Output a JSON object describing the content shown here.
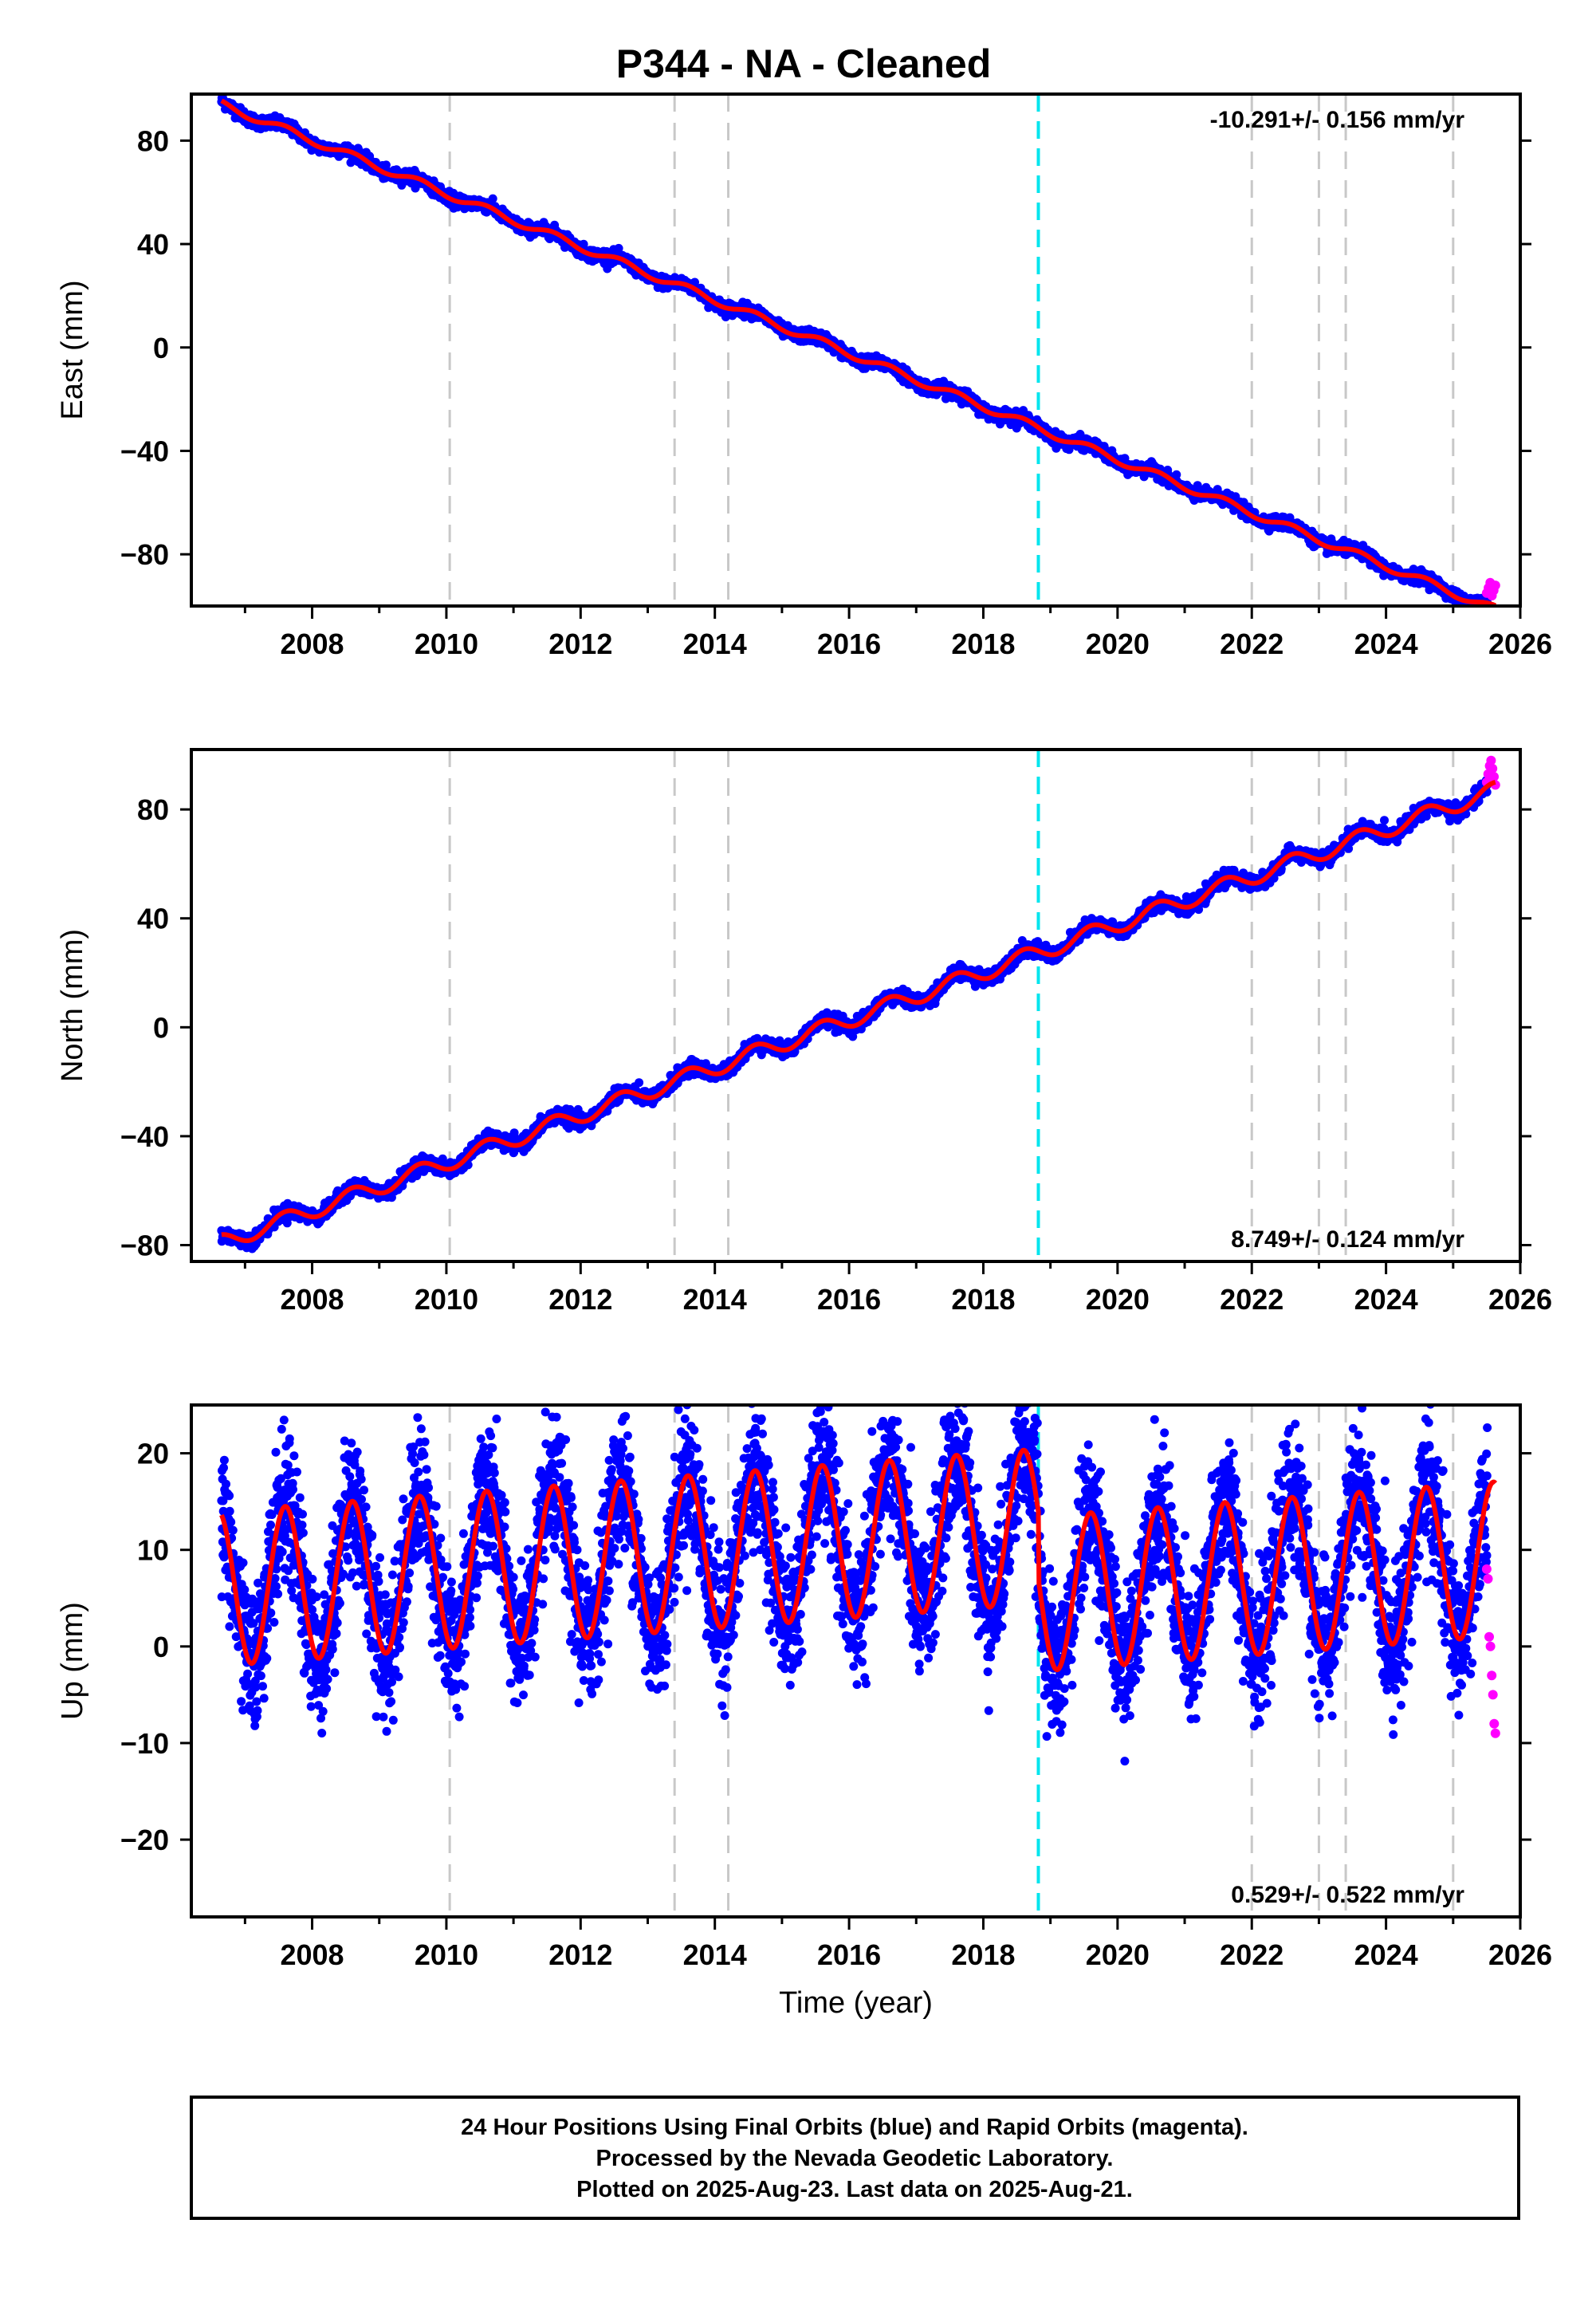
{
  "title": "P344  - NA - Cleaned",
  "chart_data": [
    {
      "type": "scatter",
      "component": "east",
      "ylabel": "East (mm)",
      "xlabel": "",
      "xlim": [
        2006.2,
        2026.0
      ],
      "ylim": [
        -100,
        98
      ],
      "x_ticks": [
        2008,
        2010,
        2012,
        2014,
        2016,
        2018,
        2020,
        2022,
        2024,
        2026
      ],
      "y_ticks": [
        80,
        40,
        0,
        -40,
        -80
      ],
      "rate_text": "-10.291+/- 0.156 mm/yr",
      "rate_position": "top-right",
      "start": 2006.65,
      "end": 2025.63,
      "trend": {
        "value_at_start": 94,
        "rate_mm_per_yr": -10.291,
        "seasonal_amplitude": 1.5,
        "noise": 1.2
      },
      "rapid_orbit_points": {
        "x_start": 2025.5,
        "x_end": 2025.63,
        "values": [
          -95,
          -93,
          -91,
          -96,
          -94,
          -92
        ]
      },
      "grid": false
    },
    {
      "type": "scatter",
      "component": "north",
      "ylabel": "North (mm)",
      "xlabel": "",
      "xlim": [
        2006.2,
        2026.0
      ],
      "ylim": [
        -86,
        102
      ],
      "x_ticks": [
        2008,
        2010,
        2012,
        2014,
        2016,
        2018,
        2020,
        2022,
        2024,
        2026
      ],
      "y_ticks": [
        80,
        40,
        0,
        -40,
        -80
      ],
      "rate_text": "8.749+/- 0.124 mm/yr",
      "rate_position": "bottom-right",
      "start": 2006.65,
      "end": 2025.63,
      "trend": {
        "value_at_start": -79,
        "rate_mm_per_yr": 8.749,
        "seasonal_amplitude": 3.0,
        "noise": 1.3
      },
      "rapid_orbit_points": {
        "x_start": 2025.5,
        "x_end": 2025.63,
        "values": [
          90,
          93,
          96,
          98,
          95,
          92,
          89
        ]
      },
      "grid": false
    },
    {
      "type": "scatter",
      "component": "up",
      "ylabel": "Up (mm)",
      "xlabel": "Time (year)",
      "xlim": [
        2006.2,
        2026.0
      ],
      "ylim": [
        -28,
        25
      ],
      "x_ticks": [
        2008,
        2010,
        2012,
        2014,
        2016,
        2018,
        2020,
        2022,
        2024,
        2026
      ],
      "y_ticks": [
        20,
        10,
        0,
        -10,
        -20
      ],
      "rate_text": "0.529+/- 0.522 mm/yr",
      "rate_position": "bottom-right",
      "start": 2006.65,
      "end": 2025.63,
      "trend": {
        "value_at_start": 6,
        "rate_mm_per_yr": 0.529,
        "seasonal_amplitude": 8.0,
        "noise": 3.5
      },
      "rapid_orbit_points": {
        "x_start": 2025.5,
        "x_end": 2025.63,
        "values": [
          8,
          7,
          1,
          0,
          -3,
          -5,
          -8,
          -9
        ]
      },
      "grid": false
    }
  ],
  "event_lines": {
    "equipment_changes": [
      2010.05,
      2013.4,
      2014.2,
      2022.0,
      2023.0,
      2023.4,
      2025.0
    ],
    "earthquake": [
      2018.82
    ],
    "equipment_color": "#c8c8c8",
    "earthquake_color": "#00e5ee"
  },
  "colors": {
    "final_orbits": "#0000ff",
    "rapid_orbits": "#ff00ff",
    "model_fit": "#ff0000"
  },
  "footer": {
    "line1": "24 Hour Positions Using Final Orbits (blue) and Rapid Orbits (magenta).",
    "line2": "Processed by the Nevada Geodetic Laboratory.",
    "line3": "Plotted on 2025-Aug-23. Last data on 2025-Aug-21."
  }
}
